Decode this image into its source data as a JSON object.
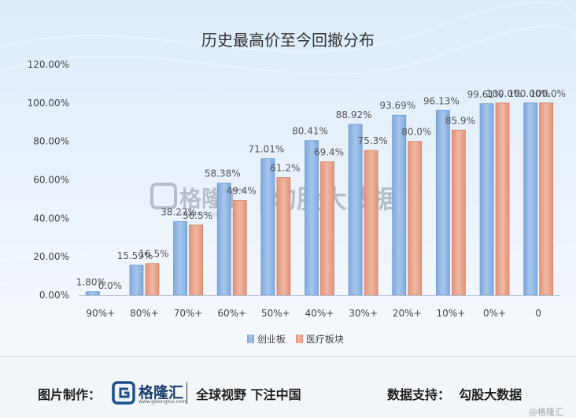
{
  "chart_data": {
    "type": "bar",
    "title": "历史最高价至今回撤分布",
    "categories": [
      "90%+",
      "80%+",
      "70%+",
      "60%+",
      "50%+",
      "40%+",
      "30%+",
      "20%+",
      "10%+",
      "0%+",
      "0"
    ],
    "series": [
      {
        "name": "创业板",
        "color": "#8fb5e3",
        "values": [
          1.8,
          15.59,
          38.27,
          58.38,
          71.01,
          80.41,
          88.92,
          93.69,
          96.13,
          99.61,
          100.0
        ],
        "labels": [
          "1.80%",
          "15.59%",
          "38.27%",
          "58.38%",
          "71.01%",
          "80.41%",
          "88.92%",
          "93.69%",
          "96.13%",
          "99.61%",
          "100.00%"
        ]
      },
      {
        "name": "医疗板块",
        "color": "#e8a48c",
        "values": [
          0.0,
          16.5,
          36.5,
          49.4,
          61.2,
          69.4,
          75.3,
          80.0,
          85.9,
          100.0,
          100.0
        ],
        "labels": [
          "0.0%",
          "16.5%",
          "36.5%",
          "49.4%",
          "61.2%",
          "69.4%",
          "75.3%",
          "80.0%",
          "85.9%",
          "100.0%",
          "100.0%"
        ]
      }
    ],
    "yticks": [
      "0.00%",
      "20.00%",
      "40.00%",
      "60.00%",
      "80.00%",
      "100.00%",
      "120.00%"
    ],
    "ylim": [
      0,
      120
    ],
    "legend_position": "bottom-center",
    "grid": false
  },
  "watermark": {
    "brand": "格隆汇",
    "domain": "www.gelonghui.com",
    "partner": "勾股大数据"
  },
  "footer": {
    "made_by_label": "图片制作：",
    "brand_name": "格隆汇",
    "brand_url": "www.gelonghui.com",
    "slogan": "全球视野 下注中国",
    "data_support": "数据支持：  勾股大数据",
    "credit": "@格隆汇"
  }
}
